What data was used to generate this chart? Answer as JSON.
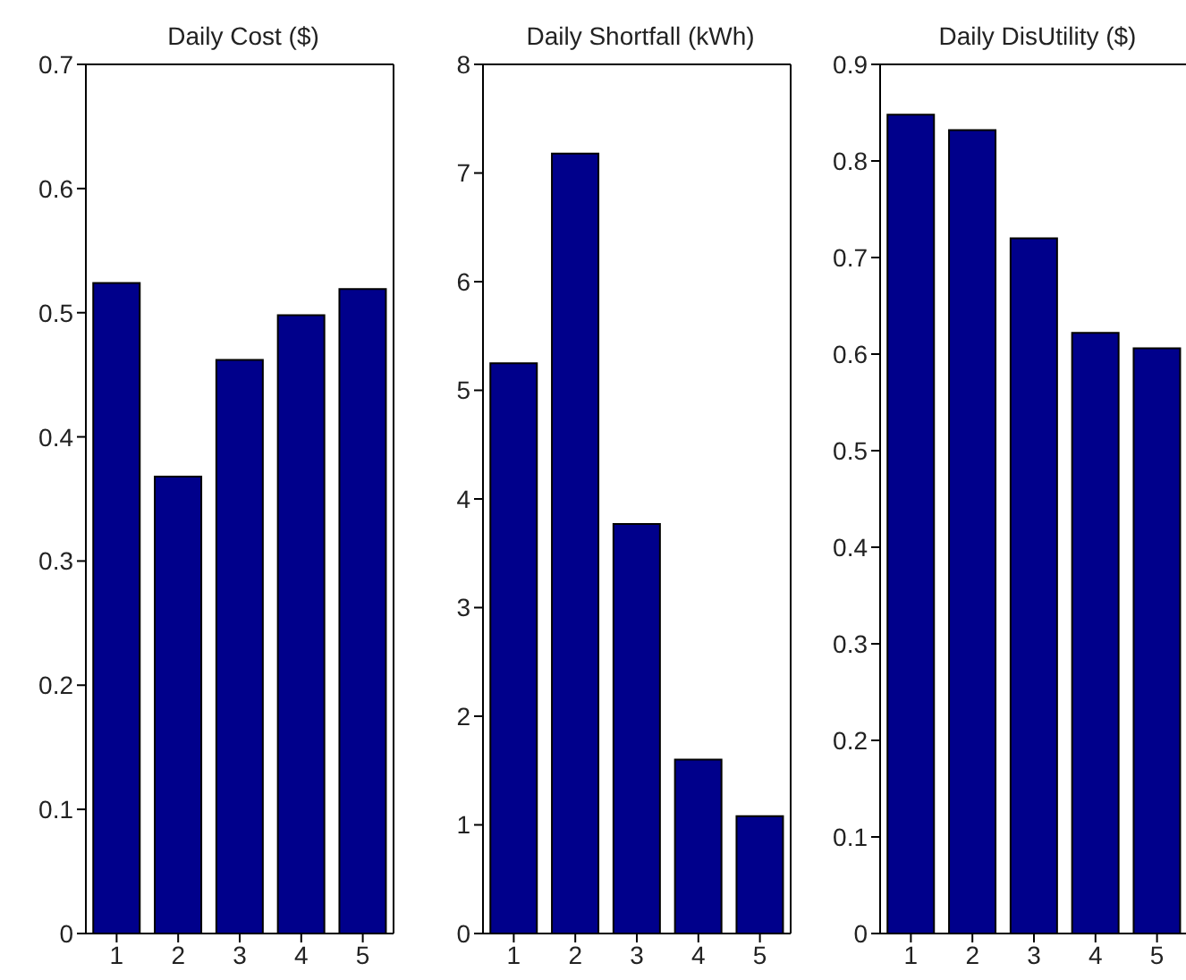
{
  "chart_data": [
    {
      "type": "bar",
      "title": "Daily Cost ($)",
      "categories": [
        "1",
        "2",
        "3",
        "4",
        "5"
      ],
      "values": [
        0.524,
        0.368,
        0.462,
        0.498,
        0.519
      ],
      "color": "#00008b",
      "ylim": [
        0,
        0.7
      ],
      "yticks": [
        0,
        0.1,
        0.2,
        0.3,
        0.4,
        0.5,
        0.6,
        0.7
      ],
      "grid": false
    },
    {
      "type": "bar",
      "title": "Daily Shortfall  (kWh)",
      "categories": [
        "1",
        "2",
        "3",
        "4",
        "5"
      ],
      "values": [
        5.25,
        7.18,
        3.77,
        1.6,
        1.08
      ],
      "color": "#00008b",
      "ylim": [
        0,
        8
      ],
      "yticks": [
        0,
        1,
        2,
        3,
        4,
        5,
        6,
        7,
        8
      ],
      "grid": false
    },
    {
      "type": "bar",
      "title": "Daily DisUtility ($)",
      "categories": [
        "1",
        "2",
        "3",
        "4",
        "5"
      ],
      "values": [
        0.848,
        0.832,
        0.72,
        0.622,
        0.606
      ],
      "color": "#00008b",
      "ylim": [
        0,
        0.9
      ],
      "yticks": [
        0,
        0.1,
        0.2,
        0.3,
        0.4,
        0.5,
        0.6,
        0.7,
        0.8,
        0.9
      ],
      "grid": false
    }
  ]
}
